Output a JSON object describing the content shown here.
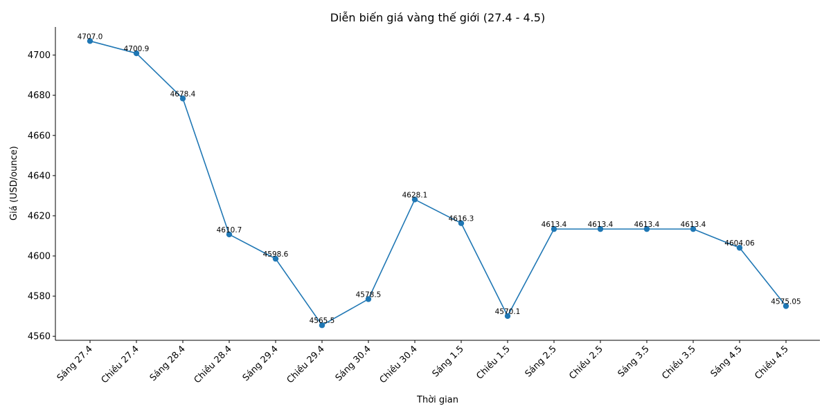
{
  "chart_data": {
    "type": "line",
    "title": "Diễn biến giá vàng thế giới (27.4 - 4.5)",
    "xlabel": "Thời gian",
    "ylabel": "Giá (USD/ounce)",
    "ylim": [
      4558,
      4714
    ],
    "yticks": [
      4560,
      4580,
      4600,
      4620,
      4640,
      4660,
      4680,
      4700
    ],
    "grid": false,
    "categories": [
      "Sáng 27.4",
      "Chiều 27.4",
      "Sáng 28.4",
      "Chiều 28.4",
      "Sáng 29.4",
      "Chiều 29.4",
      "Sáng 30.4",
      "Chiều 30.4",
      "Sáng 1.5",
      "Chiều 1.5",
      "Sáng 2.5",
      "Chiều 2.5",
      "Sáng 3.5",
      "Chiều 3.5",
      "Sáng 4.5",
      "Chiều 4.5"
    ],
    "values": [
      4707.0,
      4700.9,
      4678.4,
      4610.7,
      4598.6,
      4565.5,
      4578.5,
      4628.1,
      4616.3,
      4570.1,
      4613.4,
      4613.4,
      4613.4,
      4613.4,
      4604.06,
      4575.05
    ],
    "value_labels": [
      "4707.0",
      "4700.9",
      "4678.4",
      "4610.7",
      "4598.6",
      "4565.5",
      "4578.5",
      "4628.1",
      "4616.3",
      "4570.1",
      "4613.4",
      "4613.4",
      "4613.4",
      "4613.4",
      "4604.06",
      "4575.05"
    ],
    "line_color": "#1f77b4"
  }
}
